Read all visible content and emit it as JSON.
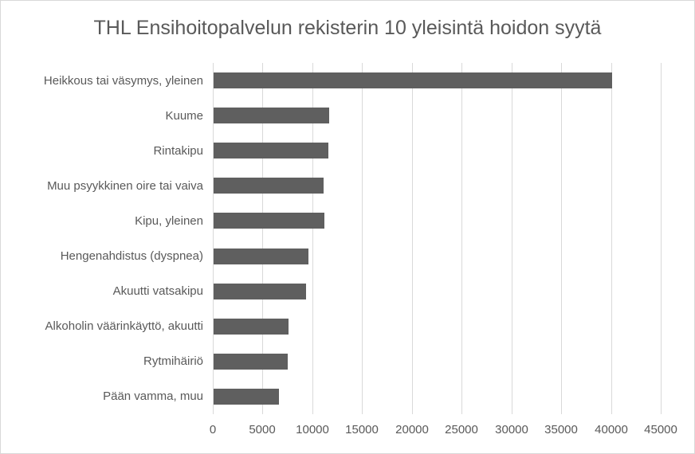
{
  "chart": {
    "colors": {
      "bar": "#5f5f5f",
      "gridline": "#d9d9d9",
      "text": "#595959",
      "border": "#d9d9d9",
      "background": "#ffffff"
    }
  },
  "chart_data": {
    "type": "bar",
    "orientation": "horizontal",
    "title": "THL Ensihoitopalvelun rekisterin 10 yleisintä hoidon syytä",
    "categories": [
      "Heikkous tai väsymys, yleinen",
      "Kuume",
      "Rintakipu",
      "Muu psyykkinen oire tai vaiva",
      "Kipu, yleinen",
      "Hengenahdistus (dyspnea)",
      "Akuutti vatsakipu",
      "Alkoholin väärinkäyttö, akuutti",
      "Rytmihäiriö",
      "Pään vamma, muu"
    ],
    "values": [
      40000,
      11600,
      11500,
      11050,
      11100,
      9550,
      9300,
      7550,
      7450,
      6600
    ],
    "xlabel": "",
    "ylabel": "",
    "xlim": [
      0,
      45000
    ],
    "xticks": [
      0,
      5000,
      10000,
      15000,
      20000,
      25000,
      30000,
      35000,
      40000,
      45000
    ],
    "grid": true,
    "legend": false
  }
}
